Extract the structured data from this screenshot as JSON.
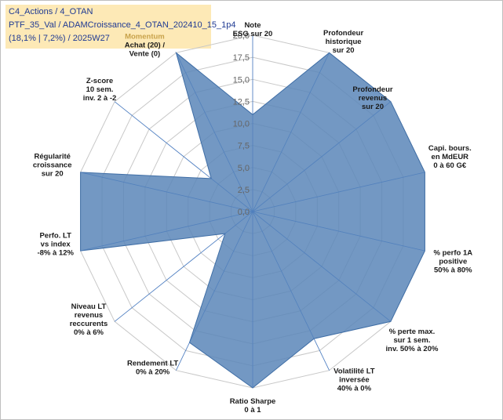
{
  "title_lines": [
    "C4_Actions / 4_OTAN",
    "PTF_35_Val / ADAMCroissance_4_OTAN_202410_15_1p4",
    "(18,1% | 7,2%) / 2025W27"
  ],
  "colors": {
    "fill": "#5b86b8",
    "stroke": "#3f6ea6",
    "grid": "#c8c8c8",
    "spoke": "#4f7fc2",
    "title_bg": "#fde9b6",
    "title_text": "#1f3a93",
    "highlight_label": "#c8a24a"
  },
  "chart_data": {
    "type": "radar",
    "rmin": 0,
    "rmax": 20,
    "tick_labels": [
      "0,0",
      "2,5",
      "5,0",
      "7,5",
      "10,0",
      "12,5",
      "15,0",
      "17,5",
      "20,0"
    ],
    "axes": [
      {
        "label": [
          "Note",
          "ESG sur 20"
        ],
        "value": 11
      },
      {
        "label": [
          "Profondeur",
          "historique",
          "sur 20"
        ],
        "value": 20
      },
      {
        "label": [
          "Profondeur",
          "revenus",
          "sur 20"
        ],
        "value": 20
      },
      {
        "label": [
          "Capi. bours.",
          "en MdEUR",
          "0 à 60 G€"
        ],
        "value": 20
      },
      {
        "label": [
          "% perfo 1A",
          "positive",
          "50% à 80%"
        ],
        "value": 20
      },
      {
        "label": [
          "% perte max.",
          "sur 1 sem.",
          "inv. 50% à 20%"
        ],
        "value": 20
      },
      {
        "label": [
          "Volatilité LT",
          "inversée",
          "40% à 0%"
        ],
        "value": 16
      },
      {
        "label": [
          "Ratio Sharpe",
          "0 à 1"
        ],
        "value": 20
      },
      {
        "label": [
          "Rendement LT",
          "0% à 20%"
        ],
        "value": 16.5
      },
      {
        "label": [
          "Niveau LT",
          "revenus",
          "reccurents",
          "0% à 6%"
        ],
        "value": 4
      },
      {
        "label": [
          "Perfo. LT",
          "vs index",
          "-8% à 12%"
        ],
        "value": 20
      },
      {
        "label": [
          "Régularité",
          "croissance",
          "sur 20"
        ],
        "value": 20
      },
      {
        "label": [
          "Z-score",
          "10 sem.",
          "inv. 2 à -2"
        ],
        "value": 6
      },
      {
        "label": [
          "Momentum",
          "Achat (20) /",
          "Vente (0)"
        ],
        "value": 20,
        "highlight_first_line": true
      }
    ]
  }
}
